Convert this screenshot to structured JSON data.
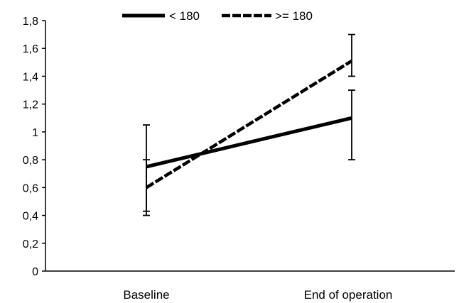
{
  "chart_data": {
    "type": "line",
    "categories": [
      "Baseline",
      "End of operation"
    ],
    "ylim": [
      0,
      1.8
    ],
    "yticks": [
      0,
      0.2,
      0.4,
      0.6,
      0.8,
      1,
      1.2,
      1.4,
      1.6,
      1.8
    ],
    "ytick_labels": [
      "0",
      "0,2",
      "0,4",
      "0,6",
      "0,8",
      "1",
      "1,2",
      "1,4",
      "1,6",
      "1,8"
    ],
    "grid": false,
    "legend_position": "top",
    "series": [
      {
        "name": "< 180",
        "line_style": "solid",
        "color": "#000000",
        "values": [
          0.75,
          1.1
        ],
        "error_low": [
          0.43,
          0.8
        ],
        "error_high": [
          0.8,
          1.3
        ]
      },
      {
        "name": ">= 180",
        "line_style": "dashed",
        "color": "#000000",
        "values": [
          0.6,
          1.51
        ],
        "error_low": [
          0.4,
          1.4
        ],
        "error_high": [
          1.05,
          1.7
        ]
      }
    ]
  }
}
